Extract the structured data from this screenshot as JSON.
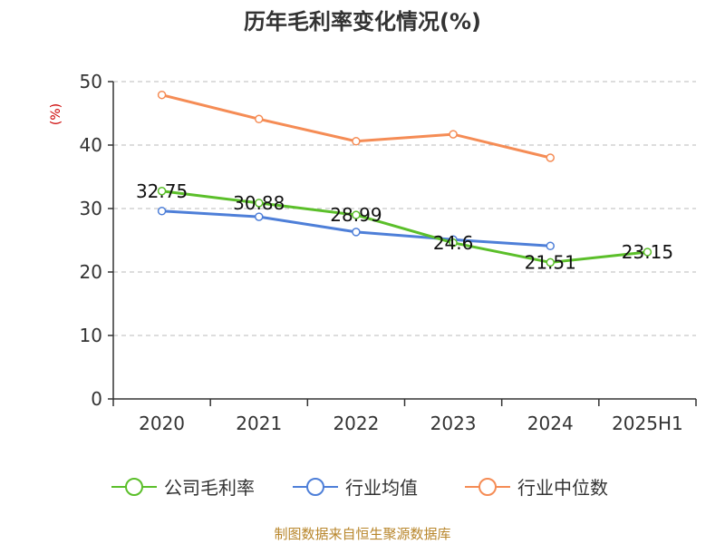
{
  "chart_data": {
    "type": "line",
    "title": "历年毛利率变化情况(%)",
    "ylabel": "(%)",
    "categories": [
      "2020",
      "2021",
      "2022",
      "2023",
      "2024",
      "2025H1"
    ],
    "ylim": [
      0,
      50
    ],
    "yticks": [
      0,
      10,
      20,
      30,
      40,
      50
    ],
    "grid": true,
    "legend_position": "bottom",
    "series": [
      {
        "name": "公司毛利率",
        "color": "#5bbf2a",
        "values": [
          32.75,
          30.88,
          28.99,
          24.6,
          21.51,
          23.15
        ],
        "labels": [
          "32.75",
          "30.88",
          "28.99",
          "24.6",
          "21.51",
          "23.15"
        ]
      },
      {
        "name": "行业均值",
        "color": "#4e7fd8",
        "values": [
          29.6,
          28.7,
          26.3,
          25.1,
          24.1,
          null
        ]
      },
      {
        "name": "行业中位数",
        "color": "#f58c55",
        "values": [
          47.9,
          44.1,
          40.6,
          41.7,
          38.0,
          null
        ]
      }
    ]
  },
  "source_text": "制图数据来自恒生聚源数据库"
}
